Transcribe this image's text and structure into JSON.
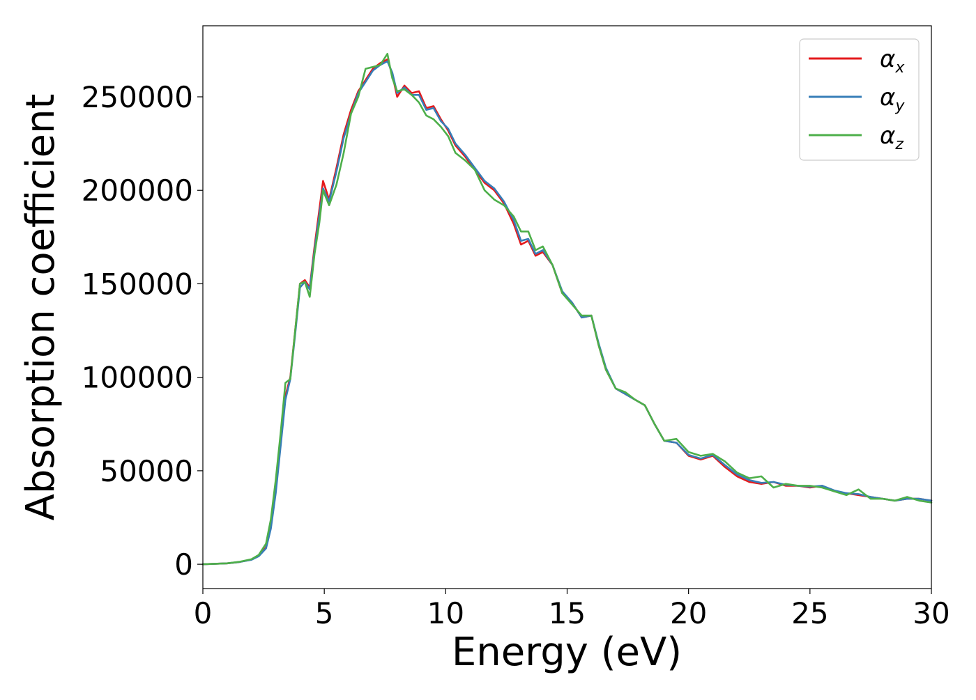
{
  "chart_data": {
    "type": "line",
    "title": "",
    "xlabel": "Energy (eV)",
    "ylabel": "Absorption coefficient",
    "xlim": [
      0,
      30
    ],
    "ylim": [
      -13000,
      288000
    ],
    "xticks": [
      0,
      5,
      10,
      15,
      20,
      25,
      30
    ],
    "xtick_labels": [
      "0",
      "5",
      "10",
      "15",
      "20",
      "25",
      "30"
    ],
    "yticks": [
      0,
      50000,
      100000,
      150000,
      200000,
      250000
    ],
    "ytick_labels": [
      "0",
      "50000",
      "100000",
      "150000",
      "200000",
      "250000"
    ],
    "grid": false,
    "legend_position": "top-right",
    "series": [
      {
        "name": "α_x",
        "name_base": "α",
        "name_sub": "x",
        "color": "#e41a1c",
        "x": [
          0,
          1,
          1.5,
          2,
          2.3,
          2.6,
          2.8,
          3.0,
          3.2,
          3.4,
          3.6,
          3.8,
          4.0,
          4.2,
          4.4,
          4.6,
          4.8,
          4.95,
          5.2,
          5.5,
          5.8,
          6.1,
          6.4,
          6.7,
          7.0,
          7.3,
          7.6,
          7.8,
          8.0,
          8.3,
          8.6,
          8.9,
          9.2,
          9.5,
          9.8,
          10.1,
          10.4,
          10.8,
          11.2,
          11.6,
          12.0,
          12.4,
          12.8,
          13.1,
          13.4,
          13.7,
          14.0,
          14.4,
          14.8,
          15.2,
          15.6,
          16.0,
          16.3,
          16.6,
          17.0,
          17.4,
          17.8,
          18.2,
          18.6,
          19.0,
          19.5,
          20.0,
          20.5,
          21.0,
          21.5,
          22.0,
          22.5,
          23.0,
          23.5,
          24.0,
          24.5,
          25.0,
          25.5,
          26.0,
          26.5,
          27.0,
          27.5,
          28.0,
          28.5,
          29.0,
          29.5,
          30.0
        ],
        "y": [
          0,
          500,
          1200,
          2500,
          4500,
          9000,
          20000,
          40000,
          65000,
          90000,
          100000,
          125000,
          150000,
          152000,
          148000,
          170000,
          190000,
          205000,
          195000,
          212000,
          230000,
          243000,
          253000,
          259000,
          265000,
          268000,
          270000,
          262000,
          250000,
          256000,
          252000,
          253000,
          244000,
          245000,
          238000,
          232000,
          224000,
          218000,
          211000,
          204000,
          200000,
          193000,
          182000,
          171000,
          173000,
          165000,
          167000,
          160000,
          145000,
          140000,
          132000,
          133000,
          117000,
          104000,
          94000,
          91000,
          88000,
          85000,
          75000,
          66000,
          65000,
          58000,
          56000,
          58000,
          52000,
          47000,
          44000,
          43000,
          44000,
          42000,
          42000,
          41000,
          42000,
          39000,
          38000,
          37000,
          36000,
          35000,
          34000,
          35000,
          35000,
          34000
        ]
      },
      {
        "name": "α_y",
        "name_base": "α",
        "name_sub": "y",
        "color": "#377eb8",
        "x": [
          0,
          1,
          1.5,
          2,
          2.3,
          2.6,
          2.8,
          3.0,
          3.2,
          3.4,
          3.6,
          3.8,
          4.0,
          4.2,
          4.4,
          4.6,
          4.8,
          4.95,
          5.2,
          5.5,
          5.8,
          6.1,
          6.4,
          6.7,
          7.0,
          7.3,
          7.6,
          7.8,
          8.0,
          8.3,
          8.6,
          8.9,
          9.2,
          9.5,
          9.8,
          10.1,
          10.4,
          10.8,
          11.2,
          11.6,
          12.0,
          12.4,
          12.8,
          13.1,
          13.4,
          13.7,
          14.0,
          14.4,
          14.8,
          15.2,
          15.6,
          16.0,
          16.3,
          16.6,
          17.0,
          17.4,
          17.8,
          18.2,
          18.6,
          19.0,
          19.5,
          20.0,
          20.5,
          21.0,
          21.5,
          22.0,
          22.5,
          23.0,
          23.5,
          24.0,
          24.5,
          25.0,
          25.5,
          26.0,
          26.5,
          27.0,
          27.5,
          28.0,
          28.5,
          29.0,
          29.5,
          30.0
        ],
        "y": [
          0,
          500,
          1200,
          2400,
          4300,
          8500,
          19000,
          38000,
          63000,
          88000,
          99000,
          123000,
          148000,
          151000,
          147000,
          168000,
          187000,
          201000,
          194000,
          210000,
          228000,
          241000,
          252000,
          258000,
          264000,
          267000,
          269000,
          263000,
          252000,
          255000,
          251000,
          251000,
          243000,
          244000,
          237000,
          233000,
          225000,
          219000,
          212000,
          205000,
          201000,
          194000,
          184000,
          173000,
          174000,
          166000,
          168000,
          160000,
          146000,
          140000,
          132000,
          133000,
          118000,
          105000,
          94000,
          91000,
          88000,
          85000,
          75000,
          66000,
          65000,
          58500,
          56500,
          58500,
          53000,
          48000,
          45000,
          43500,
          44000,
          42500,
          42000,
          41500,
          42000,
          39500,
          38000,
          37500,
          36000,
          35000,
          34000,
          35000,
          35000,
          34000
        ]
      },
      {
        "name": "α_z",
        "name_base": "α",
        "name_sub": "z",
        "color": "#4daf4a",
        "x": [
          0,
          1,
          1.5,
          2,
          2.3,
          2.6,
          2.8,
          3.0,
          3.2,
          3.4,
          3.6,
          3.8,
          4.0,
          4.2,
          4.4,
          4.6,
          4.8,
          4.95,
          5.2,
          5.5,
          5.8,
          6.1,
          6.4,
          6.7,
          7.0,
          7.3,
          7.6,
          7.8,
          8.0,
          8.3,
          8.6,
          8.9,
          9.2,
          9.5,
          9.8,
          10.1,
          10.4,
          10.8,
          11.2,
          11.6,
          12.0,
          12.4,
          12.8,
          13.1,
          13.4,
          13.7,
          14.0,
          14.4,
          14.8,
          15.2,
          15.6,
          16.0,
          16.3,
          16.6,
          17.0,
          17.4,
          17.8,
          18.2,
          18.6,
          19.0,
          19.5,
          20.0,
          20.5,
          21.0,
          21.5,
          22.0,
          22.5,
          23.0,
          23.5,
          24.0,
          24.5,
          25.0,
          25.5,
          26.0,
          26.5,
          27.0,
          27.5,
          28.0,
          28.5,
          29.0,
          29.5,
          30.0
        ],
        "y": [
          0,
          500,
          1300,
          2700,
          5000,
          11000,
          24000,
          45000,
          70000,
          97000,
          99000,
          125000,
          150000,
          151000,
          143000,
          166000,
          183000,
          200000,
          192000,
          203000,
          220000,
          241000,
          250000,
          265000,
          266000,
          267000,
          273000,
          260000,
          253000,
          254000,
          251000,
          247000,
          240000,
          238000,
          234000,
          229000,
          220000,
          216000,
          211000,
          200000,
          195000,
          192000,
          186000,
          178000,
          178000,
          168000,
          170000,
          160000,
          145000,
          139000,
          133000,
          133000,
          117000,
          104000,
          94000,
          92000,
          88000,
          85000,
          75000,
          66000,
          67000,
          60000,
          58000,
          59000,
          55000,
          49000,
          46000,
          47000,
          41000,
          43000,
          42000,
          42000,
          41000,
          39000,
          37000,
          40000,
          35000,
          35000,
          34000,
          36000,
          34000,
          33000
        ]
      }
    ]
  }
}
